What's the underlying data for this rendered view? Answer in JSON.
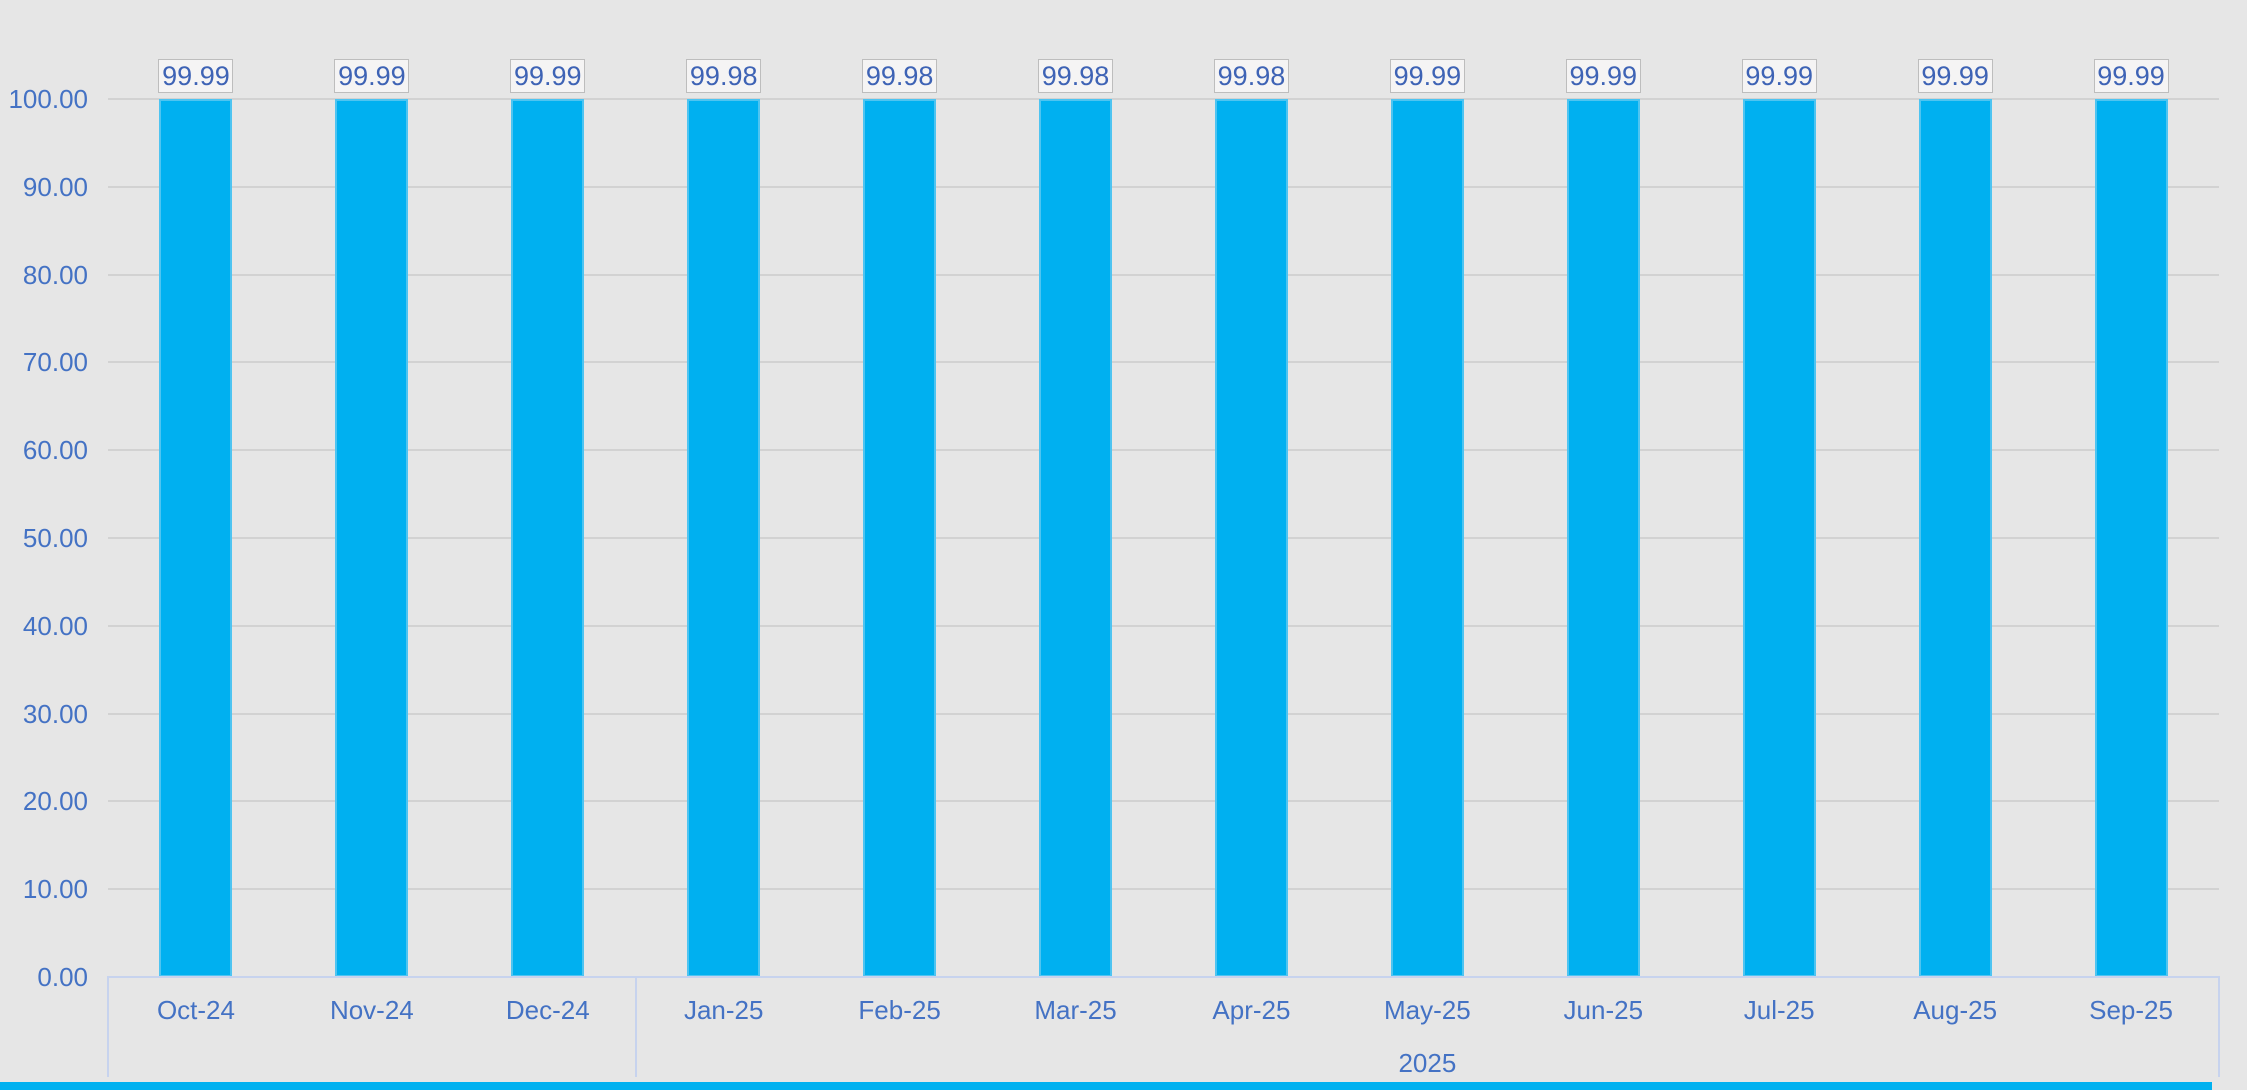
{
  "chart_data": {
    "type": "bar",
    "title": "",
    "categories": [
      "Oct-24",
      "Nov-24",
      "Dec-24",
      "Jan-25",
      "Feb-25",
      "Mar-25",
      "Apr-25",
      "May-25",
      "Jun-25",
      "Jul-25",
      "Aug-25",
      "Sep-25"
    ],
    "values": [
      99.99,
      99.99,
      99.99,
      99.98,
      99.98,
      99.98,
      99.98,
      99.99,
      99.99,
      99.99,
      99.99,
      99.99
    ],
    "data_labels": [
      "99.99",
      "99.99",
      "99.99",
      "99.98",
      "99.98",
      "99.98",
      "99.98",
      "99.99",
      "99.99",
      "99.99",
      "99.99",
      "99.99"
    ],
    "y_ticks": [
      {
        "value": 100,
        "label": "100.00"
      },
      {
        "value": 90,
        "label": "90.00"
      },
      {
        "value": 80,
        "label": "80.00"
      },
      {
        "value": 70,
        "label": "70.00"
      },
      {
        "value": 60,
        "label": "60.00"
      },
      {
        "value": 50,
        "label": "50.00"
      },
      {
        "value": 40,
        "label": "40.00"
      },
      {
        "value": 30,
        "label": "30.00"
      },
      {
        "value": 20,
        "label": "20.00"
      },
      {
        "value": 10,
        "label": "10.00"
      },
      {
        "value": 0,
        "label": "0.00"
      }
    ],
    "ylim": [
      0,
      100
    ],
    "grid": true,
    "legend": false,
    "xlabel": "",
    "ylabel": "",
    "category_groups": [
      {
        "label": "",
        "from": 0,
        "to": 3
      },
      {
        "label": "2025",
        "from": 3,
        "to": 12
      }
    ],
    "colors": {
      "background": "#e6e6e6",
      "bar": "#00b0f0",
      "bar_edge": "#4ec4f1",
      "gridline": "#d2d2d2",
      "axis_line": "#c7d3ee",
      "axis_text": "#4472c4",
      "data_label_text": "#3e63b5",
      "data_label_box_bg": "#f5f4f4",
      "data_label_box_border": "#bdbdbd",
      "bottom_strip": "#00b1f0"
    }
  }
}
